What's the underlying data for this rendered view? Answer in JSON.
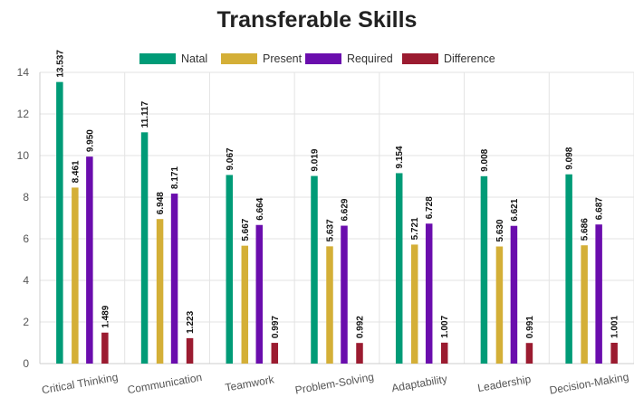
{
  "chart_data": {
    "type": "bar",
    "title": "Transferable Skills",
    "xlabel": "",
    "ylabel": "",
    "ylim": [
      0,
      14
    ],
    "yticks": [
      0,
      2,
      4,
      6,
      8,
      10,
      12,
      14
    ],
    "grid": true,
    "legend_position": "top-center",
    "categories": [
      "Critical Thinking",
      "Communication",
      "Teamwork",
      "Problem-Solving",
      "Adaptability",
      "Leadership",
      "Decision-Making"
    ],
    "series": [
      {
        "name": "Natal",
        "color": "#009b77",
        "values": [
          13.537,
          11.117,
          9.067,
          9.019,
          9.154,
          9.008,
          9.098
        ]
      },
      {
        "name": "Present",
        "color": "#d4af37",
        "values": [
          8.461,
          6.948,
          5.667,
          5.637,
          5.721,
          5.63,
          5.686
        ]
      },
      {
        "name": "Required",
        "color": "#6a0dad",
        "values": [
          9.95,
          8.171,
          6.664,
          6.629,
          6.728,
          6.621,
          6.687
        ]
      },
      {
        "name": "Difference",
        "color": "#9b1b30",
        "values": [
          1.489,
          1.223,
          0.997,
          0.992,
          1.007,
          0.991,
          1.001
        ]
      }
    ]
  }
}
